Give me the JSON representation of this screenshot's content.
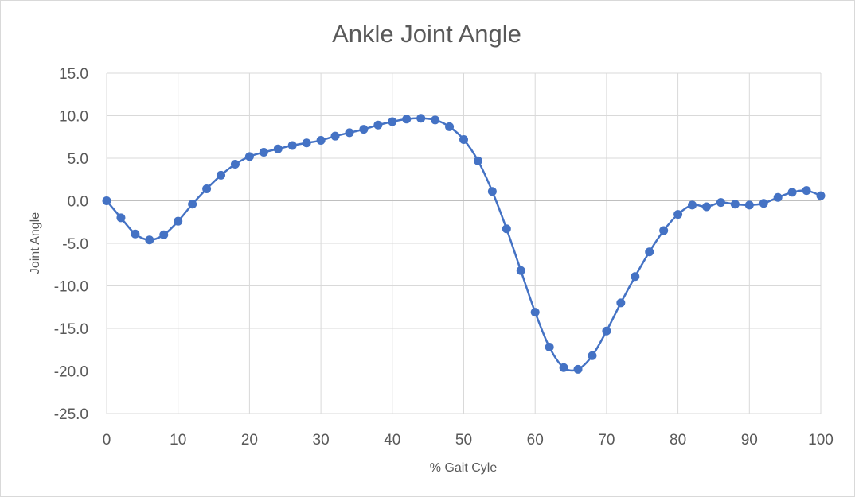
{
  "chart_data": {
    "type": "scatter",
    "title": "Ankle Joint Angle",
    "xlabel": "% Gait Cyle",
    "ylabel": "Joint Angle",
    "xlim": [
      0,
      100
    ],
    "ylim": [
      -25,
      15
    ],
    "x_ticks": [
      0,
      10,
      20,
      30,
      40,
      50,
      60,
      70,
      80,
      90,
      100
    ],
    "y_ticks": [
      "15.0",
      "10.0",
      "5.0",
      "0.0",
      "-5.0",
      "-10.0",
      "-15.0",
      "-20.0",
      "-25.0"
    ],
    "grid": true,
    "legend": "none",
    "smooth_line": true,
    "markers": true,
    "series_color": "#4472c4",
    "series": [
      {
        "x": [
          0,
          2,
          4,
          6,
          8,
          10,
          12,
          14,
          16,
          18,
          20,
          22,
          24,
          26,
          28,
          30,
          32,
          34,
          36,
          38,
          40,
          42,
          44,
          46,
          48,
          50,
          52,
          54,
          56,
          58,
          60,
          62,
          64,
          66,
          68,
          70,
          72,
          74,
          76,
          78,
          80,
          82,
          84,
          86,
          88,
          90,
          92,
          94,
          96,
          98,
          100
        ],
        "y": [
          0.0,
          -2.0,
          -3.9,
          -4.6,
          -4.0,
          -2.4,
          -0.4,
          1.4,
          3.0,
          4.3,
          5.2,
          5.7,
          6.1,
          6.5,
          6.8,
          7.1,
          7.6,
          8.0,
          8.4,
          8.9,
          9.3,
          9.6,
          9.7,
          9.5,
          8.7,
          7.2,
          4.7,
          1.1,
          -3.3,
          -8.2,
          -13.1,
          -17.2,
          -19.6,
          -19.8,
          -18.2,
          -15.3,
          -12.0,
          -8.9,
          -6.0,
          -3.5,
          -1.6,
          -0.5,
          -0.7,
          -0.2,
          -0.4,
          -0.5,
          -0.3,
          0.4,
          1.0,
          1.2,
          0.6
        ]
      }
    ]
  }
}
